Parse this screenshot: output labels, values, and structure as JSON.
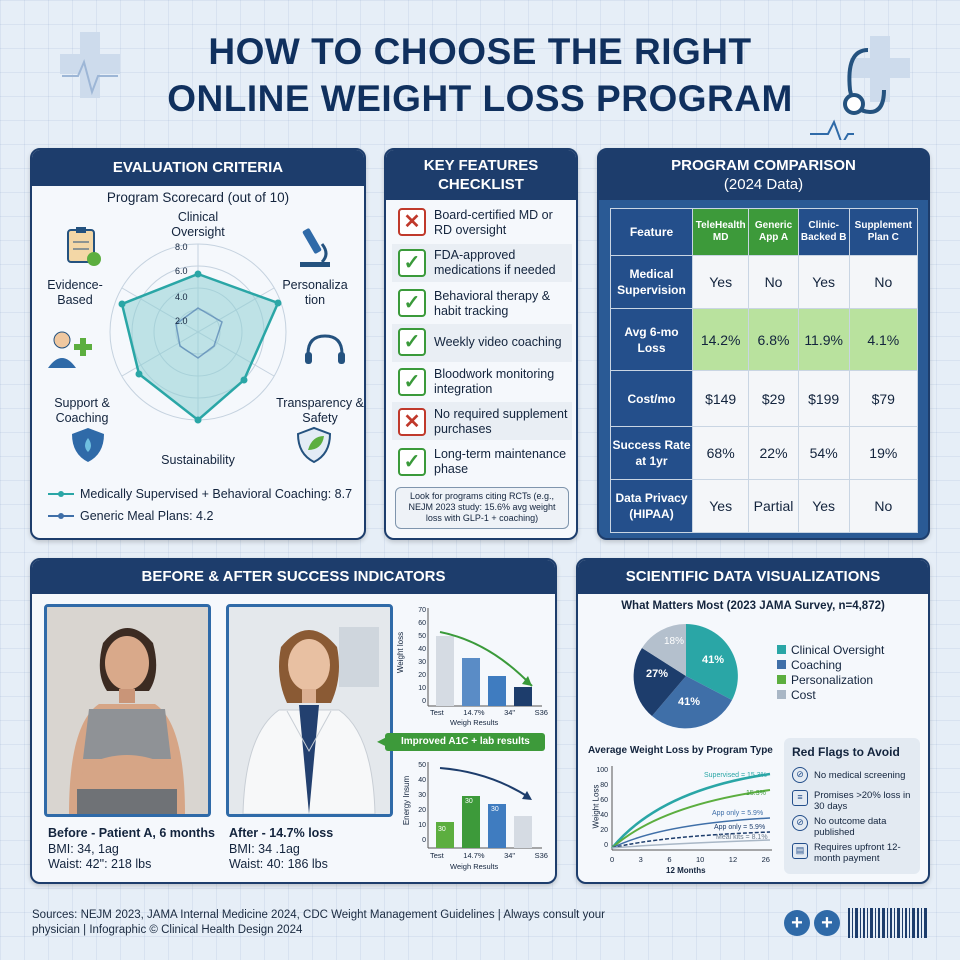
{
  "title_line1": "HOW TO CHOOSE THE RIGHT",
  "title_line2": "ONLINE WEIGHT LOSS PROGRAM",
  "evaluation": {
    "header": "EVALUATION CRITERIA",
    "subtitle": "Program Scorecard (out of 10)",
    "axes": [
      "Clinical Oversight",
      "Personalization",
      "Transparency & Safety",
      "Sustainability",
      "Support & Coaching",
      "Evidence-Based"
    ],
    "ticks": [
      "8.0",
      "6.0",
      "4.0",
      "2.0"
    ],
    "legend": [
      "Medically Supervised + Behavioral Coaching: 8.7",
      "Generic Meal Plans: 4.2"
    ]
  },
  "checklist": {
    "header_line1": "KEY FEATURES",
    "header_line2": "CHECKLIST",
    "items": [
      {
        "text": "Board-certified MD or RD oversight",
        "mark": "x"
      },
      {
        "text": "FDA-approved medications if needed",
        "mark": "check"
      },
      {
        "text": "Behavioral therapy & habit tracking",
        "mark": "check"
      },
      {
        "text": "Weekly video coaching",
        "mark": "check"
      },
      {
        "text": "Bloodwork monitoring integration",
        "mark": "check"
      },
      {
        "text": "No required supplement purchases",
        "mark": "x"
      },
      {
        "text": "Long-term maintenance phase",
        "mark": "check"
      }
    ],
    "note": "Look for programs citing RCTs (e.g., NEJM 2023 study: 15.6% avg weight loss with GLP-1 + coaching)"
  },
  "comparison": {
    "header_line1": "PROGRAM COMPARISON",
    "header_line2": "(2024 Data)",
    "feature_label": "Feature",
    "columns": [
      "TeleHealth MD",
      "Generic App A",
      "Clinic-Backed B",
      "Supplement Plan C"
    ],
    "rows": [
      {
        "label": "Medical Supervision",
        "values": [
          "Yes",
          "No",
          "Yes",
          "No"
        ]
      },
      {
        "label": "Avg 6-mo Loss",
        "values": [
          "14.2%",
          "6.8%",
          "11.9%",
          "4.1%"
        ]
      },
      {
        "label": "Cost/mo",
        "values": [
          "$149",
          "$29",
          "$199",
          "$79"
        ]
      },
      {
        "label": "Success Rate at 1yr",
        "values": [
          "68%",
          "22%",
          "54%",
          "19%"
        ]
      },
      {
        "label": "Data Privacy (HIPAA)",
        "values": [
          "Yes",
          "Partial",
          "Yes",
          "No"
        ]
      }
    ]
  },
  "before_after": {
    "header": "BEFORE & AFTER SUCCESS INDICATORS",
    "before_caption": "Before - Patient A, 6 months",
    "before_bmi": "BMI: 34, 1ag",
    "before_waist": "Waist: 42\": 218 lbs",
    "after_caption": "After - 14.7% loss",
    "after_bmi": "BMI: 34 .1ag",
    "after_waist": "Waist: 40: 186 lbs",
    "chart1_ylabel": "Weight loss",
    "chart1_yticks": [
      "70",
      "60",
      "50",
      "40",
      "30",
      "20",
      "10",
      "0"
    ],
    "chart1_xticks": [
      "Test",
      "14.7%",
      "34\"",
      "S36"
    ],
    "chart1_xlabel": "Weigh Results",
    "improved_label": "Improved A1C + lab results",
    "chart2_ylabel": "Energy Insum",
    "chart2_yticks": [
      "50",
      "40",
      "30",
      "20",
      "10",
      "0"
    ],
    "chart2_xticks": [
      "Test",
      "14.7%",
      "34\"",
      "S36"
    ],
    "chart2_xlabel": "Weigh Results",
    "chart2_bar_labels": [
      "30",
      "30",
      "30"
    ]
  },
  "scientific": {
    "header": "SCIENTIFIC DATA VISUALIZATIONS",
    "pie_title": "What Matters Most (2023 JAMA Survey, n=4,872)",
    "pie_labels": [
      "41%",
      "41%",
      "27%",
      "18%"
    ],
    "legend": [
      "Clinical Oversight",
      "Coaching",
      "Personalization",
      "Cost"
    ],
    "line_title": "Average Weight Loss by Program Type",
    "line_ylabel": "Weight Loss",
    "line_yticks": [
      "100",
      "80",
      "60",
      "40",
      "20",
      "0"
    ],
    "line_xticks": [
      "0",
      "3",
      "6",
      "10",
      "12",
      "26"
    ],
    "line_xlabel": "12 Months",
    "line_series_labels": [
      "Supervised = 15.3%",
      "15.3%",
      "App only = 5.9%",
      "App only = 5.9%",
      "Meal kits = 8.1%"
    ],
    "red_flags_title": "Red Flags to Avoid",
    "red_flags": [
      "No medical screening",
      "Promises >20% loss in 30 days",
      "No outcome data published",
      "Requires upfront 12-month payment"
    ]
  },
  "colors": {
    "navy": "#1d3d6c",
    "teal": "#2aa6a6",
    "green": "#5cae3f",
    "blue": "#3f6fa8",
    "gray": "#a9b7c6",
    "red": "#c0392b"
  },
  "footer_line1": "Sources: NEJM 2023, JAMA Internal Medicine 2024, CDC Weight Management Guidelines | Always consult your",
  "footer_line2": "physician | Infographic © Clinical Health Design 2024"
}
